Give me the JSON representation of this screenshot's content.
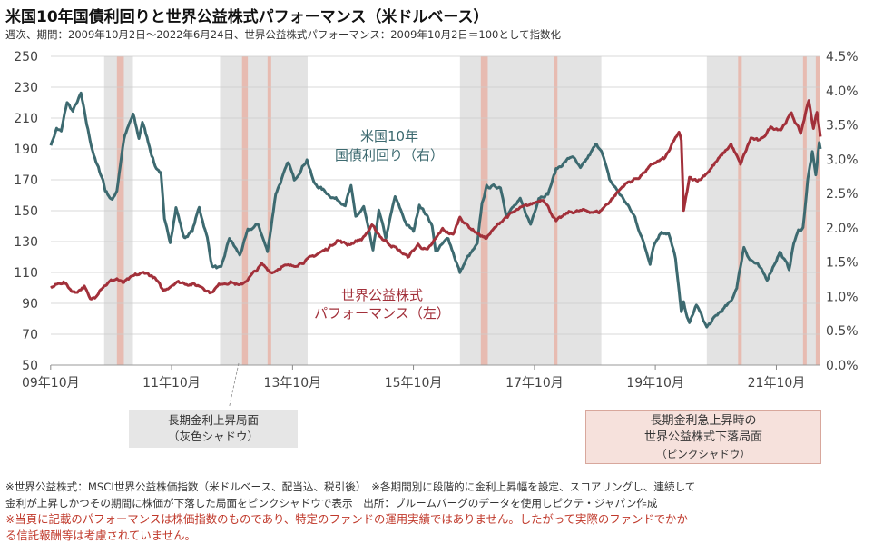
{
  "header": {
    "title": "米国10年国債利回りと世界公益株式パフォーマンス（米ドルベース）",
    "subtitle": "週次、期間：2009年10月2日～2022年6月24日、世界公益株式パフォーマンス：2009年10月2日＝100として指数化"
  },
  "annotations": {
    "yield_label_1": "米国10年",
    "yield_label_2": "国債利回り（右）",
    "equity_label_1": "世界公益株式",
    "equity_label_2": "パフォーマンス（左）",
    "gray_box_1": "長期金利上昇局面",
    "gray_box_2": "（灰色シャドウ）",
    "pink_box_1": "長期金利急上昇時の",
    "pink_box_2": "世界公益株式下落局面",
    "pink_box_3": "（ピンクシャドウ）"
  },
  "footnotes": {
    "line1": "※世界公益株式：MSCI世界公益株価指数（米ドルベース、配当込、税引後）　※各期間別に段階的に金利上昇幅を設定、スコアリングし、連続して",
    "line2": "金利が上昇しかつその期間に株価が下落した局面をピンクシャドウで表示　出所：ブルームバーグのデータを使用しピクテ・ジャパン作成",
    "line3": "※当頁に記載のパフォーマンスは株価指数のものであり、特定のファンドの運用実績ではありません。したがって実際のファンドでかか",
    "line4": "る信託報酬等は考慮されていません。"
  },
  "colors": {
    "yield_line": "#3d6a70",
    "equity_line": "#a2303a",
    "gray_shade": "#e3e3e3",
    "pink_shade": "#e8b4a8",
    "grid": "#cccccc",
    "note_red": "#c0392b"
  },
  "chart_data": {
    "type": "line",
    "x_domain": [
      "2009-10-02",
      "2022-06-24"
    ],
    "x_ticks": [
      {
        "date": "2009-10-01",
        "label": "09年10月"
      },
      {
        "date": "2011-10-01",
        "label": "11年10月"
      },
      {
        "date": "2013-10-01",
        "label": "13年10月"
      },
      {
        "date": "2015-10-01",
        "label": "15年10月"
      },
      {
        "date": "2017-10-01",
        "label": "17年10月"
      },
      {
        "date": "2019-10-01",
        "label": "19年10月"
      },
      {
        "date": "2021-10-01",
        "label": "21年10月"
      }
    ],
    "y_left": {
      "min": 50,
      "max": 250,
      "ticks": [
        50,
        70,
        90,
        110,
        130,
        150,
        170,
        190,
        210,
        230,
        250
      ]
    },
    "y_right": {
      "min": 0.0,
      "max": 4.5,
      "ticks": [
        "0.0%",
        "0.5%",
        "1.0%",
        "1.5%",
        "2.0%",
        "2.5%",
        "3.0%",
        "3.5%",
        "4.0%",
        "4.5%"
      ]
    },
    "gray_shadows": [
      [
        "2010-08-20",
        "2011-02-10"
      ],
      [
        "2012-07-20",
        "2013-12-31"
      ],
      [
        "2016-07-08",
        "2018-11-09"
      ],
      [
        "2020-08-07",
        "2022-06-24"
      ]
    ],
    "pink_shadows": [
      [
        "2010-11-05",
        "2010-12-17"
      ],
      [
        "2012-11-30",
        "2013-01-04"
      ],
      [
        "2013-05-03",
        "2013-05-24"
      ],
      [
        "2016-11-11",
        "2016-12-23"
      ],
      [
        "2018-01-26",
        "2018-02-09"
      ],
      [
        "2021-02-12",
        "2021-03-05"
      ],
      [
        "2022-03-11",
        "2022-03-25"
      ],
      [
        "2022-05-27",
        "2022-06-24"
      ]
    ],
    "series": [
      {
        "name": "米国10年国債利回り（右）",
        "axis": "right",
        "points": [
          [
            "2009-10-02",
            3.2
          ],
          [
            "2009-11-06",
            3.45
          ],
          [
            "2009-12-04",
            3.4
          ],
          [
            "2010-01-08",
            3.83
          ],
          [
            "2010-02-12",
            3.7
          ],
          [
            "2010-04-02",
            3.95
          ],
          [
            "2010-05-07",
            3.5
          ],
          [
            "2010-06-04",
            3.2
          ],
          [
            "2010-07-02",
            2.95
          ],
          [
            "2010-08-13",
            2.7
          ],
          [
            "2010-08-27",
            2.55
          ],
          [
            "2010-10-08",
            2.4
          ],
          [
            "2010-11-05",
            2.55
          ],
          [
            "2010-12-17",
            3.3
          ],
          [
            "2011-02-11",
            3.65
          ],
          [
            "2011-03-18",
            3.3
          ],
          [
            "2011-04-08",
            3.55
          ],
          [
            "2011-06-24",
            2.9
          ],
          [
            "2011-07-29",
            2.8
          ],
          [
            "2011-08-19",
            2.1
          ],
          [
            "2011-09-23",
            1.8
          ],
          [
            "2011-10-28",
            2.3
          ],
          [
            "2011-12-16",
            1.85
          ],
          [
            "2012-02-03",
            1.95
          ],
          [
            "2012-03-16",
            2.3
          ],
          [
            "2012-05-04",
            1.85
          ],
          [
            "2012-06-01",
            1.45
          ],
          [
            "2012-07-27",
            1.4
          ],
          [
            "2012-09-14",
            1.85
          ],
          [
            "2012-11-16",
            1.6
          ],
          [
            "2013-01-04",
            1.95
          ],
          [
            "2013-03-08",
            2.05
          ],
          [
            "2013-05-03",
            1.65
          ],
          [
            "2013-06-21",
            2.5
          ],
          [
            "2013-09-06",
            2.95
          ],
          [
            "2013-10-11",
            2.7
          ],
          [
            "2013-12-27",
            3.0
          ],
          [
            "2014-02-07",
            2.65
          ],
          [
            "2014-05-30",
            2.45
          ],
          [
            "2014-08-15",
            2.35
          ],
          [
            "2014-09-19",
            2.6
          ],
          [
            "2014-10-17",
            2.15
          ],
          [
            "2014-12-05",
            2.3
          ],
          [
            "2015-01-30",
            1.65
          ],
          [
            "2015-03-06",
            2.25
          ],
          [
            "2015-04-17",
            1.85
          ],
          [
            "2015-06-12",
            2.45
          ],
          [
            "2015-08-21",
            2.05
          ],
          [
            "2015-10-02",
            1.95
          ],
          [
            "2015-11-06",
            2.35
          ],
          [
            "2016-01-22",
            2.05
          ],
          [
            "2016-02-12",
            1.65
          ],
          [
            "2016-04-29",
            1.85
          ],
          [
            "2016-07-08",
            1.35
          ],
          [
            "2016-08-19",
            1.55
          ],
          [
            "2016-10-21",
            1.75
          ],
          [
            "2016-11-18",
            2.35
          ],
          [
            "2016-12-16",
            2.6
          ],
          [
            "2017-03-10",
            2.6
          ],
          [
            "2017-04-14",
            2.2
          ],
          [
            "2017-07-07",
            2.4
          ],
          [
            "2017-09-08",
            2.05
          ],
          [
            "2017-10-27",
            2.45
          ],
          [
            "2017-12-22",
            2.5
          ],
          [
            "2018-02-09",
            2.85
          ],
          [
            "2018-05-18",
            3.05
          ],
          [
            "2018-07-06",
            2.85
          ],
          [
            "2018-10-05",
            3.2
          ],
          [
            "2018-11-09",
            3.15
          ],
          [
            "2018-12-28",
            2.7
          ],
          [
            "2019-03-29",
            2.4
          ],
          [
            "2019-05-31",
            2.15
          ],
          [
            "2019-08-30",
            1.5
          ],
          [
            "2019-09-20",
            1.75
          ],
          [
            "2019-11-08",
            1.95
          ],
          [
            "2019-12-20",
            1.92
          ],
          [
            "2020-01-31",
            1.55
          ],
          [
            "2020-03-06",
            0.75
          ],
          [
            "2020-03-20",
            0.9
          ],
          [
            "2020-04-24",
            0.6
          ],
          [
            "2020-06-05",
            0.88
          ],
          [
            "2020-08-07",
            0.55
          ],
          [
            "2020-10-16",
            0.75
          ],
          [
            "2020-12-31",
            0.92
          ],
          [
            "2021-02-05",
            1.15
          ],
          [
            "2021-03-19",
            1.72
          ],
          [
            "2021-04-23",
            1.55
          ],
          [
            "2021-06-11",
            1.45
          ],
          [
            "2021-08-06",
            1.25
          ],
          [
            "2021-10-22",
            1.65
          ],
          [
            "2021-12-17",
            1.4
          ],
          [
            "2022-01-14",
            1.78
          ],
          [
            "2022-02-11",
            1.95
          ],
          [
            "2022-03-11",
            2.0
          ],
          [
            "2022-04-08",
            2.7
          ],
          [
            "2022-05-06",
            3.1
          ],
          [
            "2022-05-27",
            2.75
          ],
          [
            "2022-06-17",
            3.25
          ],
          [
            "2022-06-24",
            3.15
          ]
        ]
      },
      {
        "name": "世界公益株式パフォーマンス（左）",
        "axis": "left",
        "points": [
          [
            "2009-10-02",
            100
          ],
          [
            "2009-11-06",
            102
          ],
          [
            "2009-12-18",
            104
          ],
          [
            "2010-01-29",
            99
          ],
          [
            "2010-02-26",
            97
          ],
          [
            "2010-04-23",
            101
          ],
          [
            "2010-05-28",
            92
          ],
          [
            "2010-06-25",
            94
          ],
          [
            "2010-07-30",
            100
          ],
          [
            "2010-09-24",
            104
          ],
          [
            "2010-11-05",
            106
          ],
          [
            "2010-12-10",
            103
          ],
          [
            "2011-02-25",
            108
          ],
          [
            "2011-04-29",
            110
          ],
          [
            "2011-06-24",
            106
          ],
          [
            "2011-08-12",
            98
          ],
          [
            "2011-10-28",
            104
          ],
          [
            "2011-12-30",
            103
          ],
          [
            "2012-03-30",
            101
          ],
          [
            "2012-05-25",
            97
          ],
          [
            "2012-07-27",
            103
          ],
          [
            "2012-09-28",
            104
          ],
          [
            "2012-11-16",
            101
          ],
          [
            "2013-01-25",
            108
          ],
          [
            "2013-03-29",
            115
          ],
          [
            "2013-05-31",
            110
          ],
          [
            "2013-07-26",
            114
          ],
          [
            "2013-09-27",
            114
          ],
          [
            "2013-12-27",
            118
          ],
          [
            "2014-02-28",
            122
          ],
          [
            "2014-04-25",
            125
          ],
          [
            "2014-06-27",
            131
          ],
          [
            "2014-08-29",
            128
          ],
          [
            "2014-11-28",
            132
          ],
          [
            "2015-01-23",
            140
          ],
          [
            "2015-03-27",
            132
          ],
          [
            "2015-06-26",
            125
          ],
          [
            "2015-08-28",
            120
          ],
          [
            "2015-10-30",
            128
          ],
          [
            "2015-12-25",
            124
          ],
          [
            "2016-03-25",
            138
          ],
          [
            "2016-05-27",
            134
          ],
          [
            "2016-07-08",
            146
          ],
          [
            "2016-08-26",
            140
          ],
          [
            "2016-10-28",
            135
          ],
          [
            "2016-12-09",
            132
          ],
          [
            "2017-03-31",
            145
          ],
          [
            "2017-06-30",
            151
          ],
          [
            "2017-09-29",
            155
          ],
          [
            "2017-11-24",
            158
          ],
          [
            "2018-02-09",
            143
          ],
          [
            "2018-04-27",
            149
          ],
          [
            "2018-07-27",
            150
          ],
          [
            "2018-10-26",
            149
          ],
          [
            "2018-12-28",
            156
          ],
          [
            "2019-03-29",
            167
          ],
          [
            "2019-06-28",
            172
          ],
          [
            "2019-09-27",
            181
          ],
          [
            "2019-11-29",
            184
          ],
          [
            "2020-02-21",
            201
          ],
          [
            "2020-03-06",
            195
          ],
          [
            "2020-03-20",
            150
          ],
          [
            "2020-04-24",
            171
          ],
          [
            "2020-06-26",
            170
          ],
          [
            "2020-08-28",
            177
          ],
          [
            "2020-10-30",
            185
          ],
          [
            "2020-12-31",
            193
          ],
          [
            "2021-02-26",
            180
          ],
          [
            "2021-04-30",
            197
          ],
          [
            "2021-06-25",
            195
          ],
          [
            "2021-08-27",
            204
          ],
          [
            "2021-10-29",
            203
          ],
          [
            "2021-12-31",
            213
          ],
          [
            "2022-02-25",
            200
          ],
          [
            "2022-04-15",
            222
          ],
          [
            "2022-05-13",
            203
          ],
          [
            "2022-06-03",
            214
          ],
          [
            "2022-06-24",
            198
          ]
        ]
      }
    ],
    "noise": {
      "right": 0.04,
      "left": 1.6
    }
  }
}
